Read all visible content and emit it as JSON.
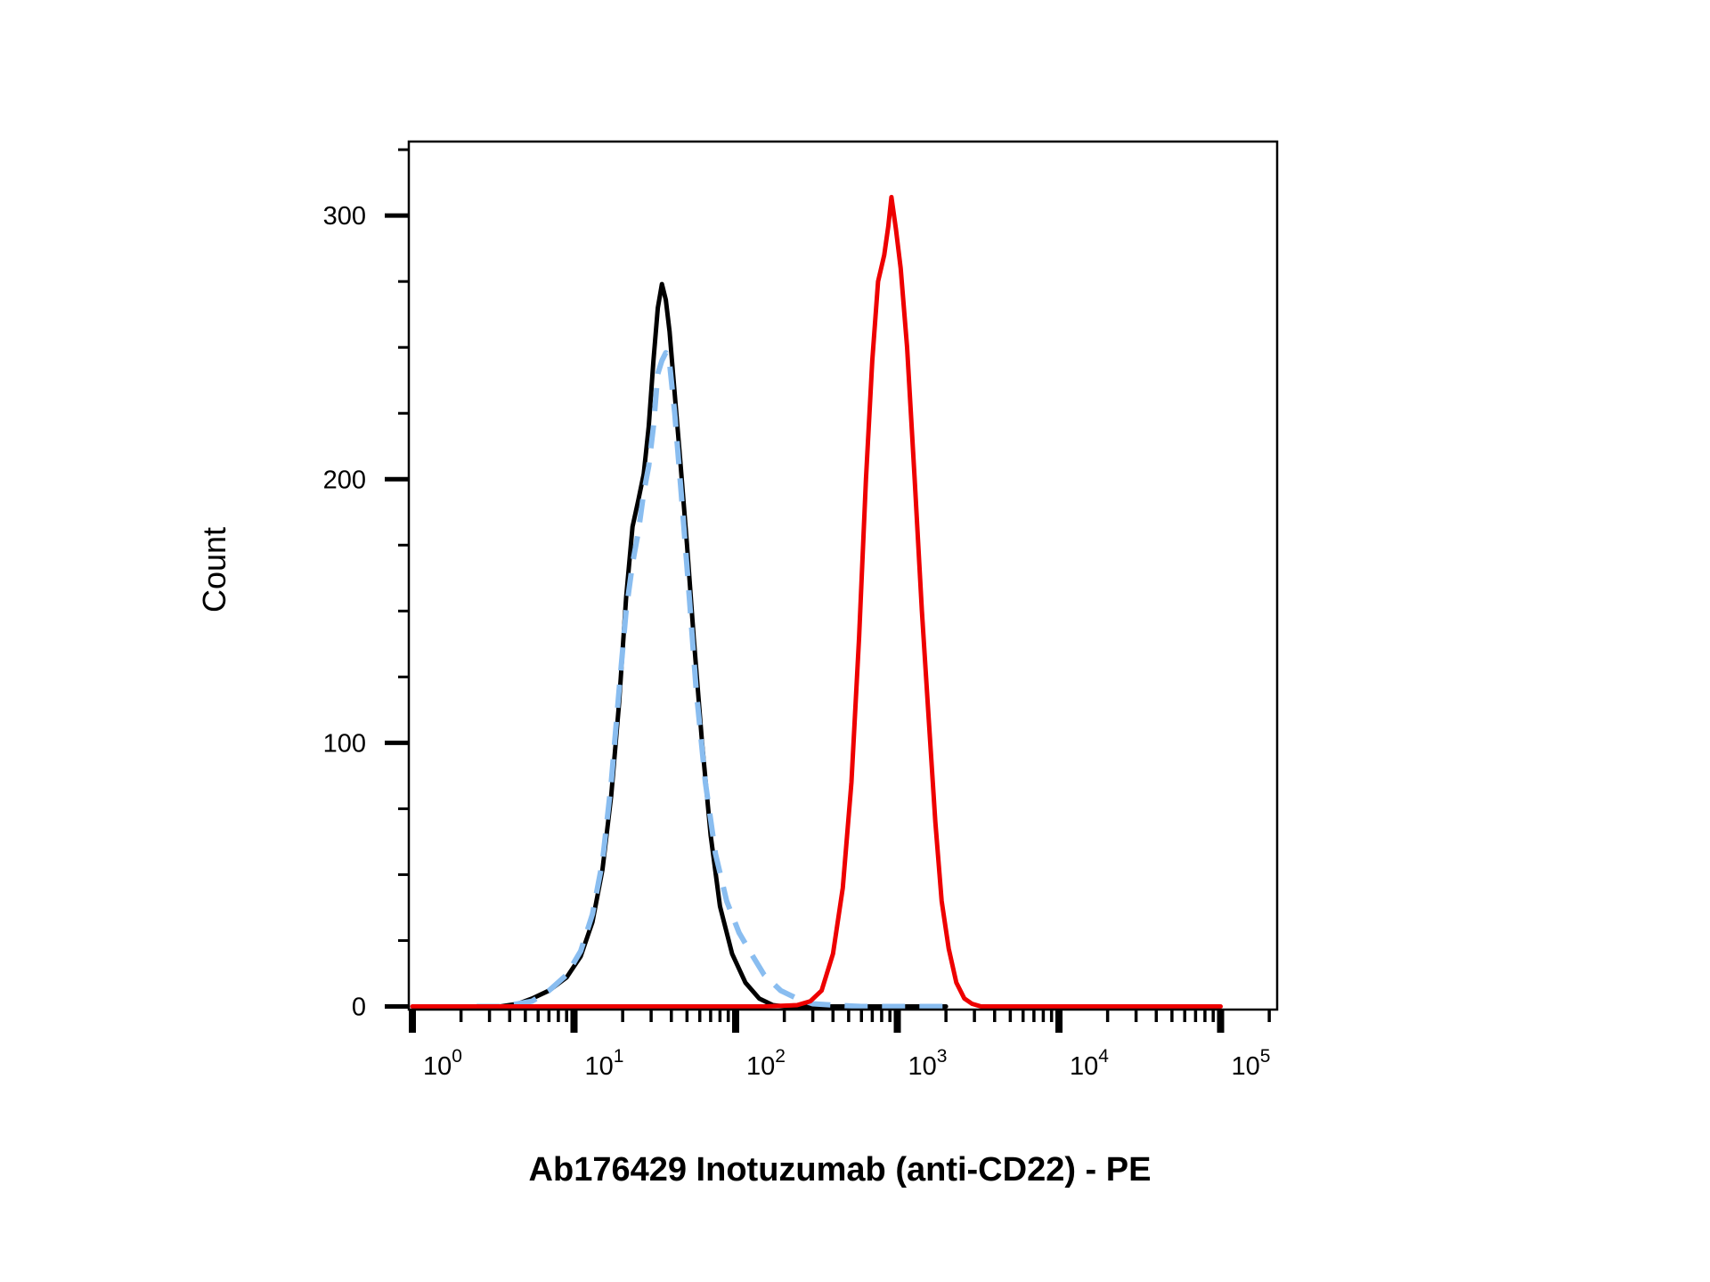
{
  "chart_data": {
    "type": "line",
    "title": "",
    "xlabel": "Ab176429 Inotuzumab (anti-CD22) - PE",
    "ylabel": "Count",
    "x_scale": "log10",
    "xlim": [
      0.7,
      140000
    ],
    "ylim": [
      -5,
      330
    ],
    "x_ticks": [
      {
        "base": "10",
        "exp": "0"
      },
      {
        "base": "10",
        "exp": "1"
      },
      {
        "base": "10",
        "exp": "2"
      },
      {
        "base": "10",
        "exp": "3"
      },
      {
        "base": "10",
        "exp": "4"
      },
      {
        "base": "10",
        "exp": "5"
      }
    ],
    "y_ticks": [
      "0",
      "100",
      "200",
      "300"
    ],
    "grid": false,
    "legend": "none",
    "series": [
      {
        "color": "#000000",
        "style": "solid",
        "points": [
          [
            2.5,
            0
          ],
          [
            3.5,
            0
          ],
          [
            4.5,
            1
          ],
          [
            5.5,
            3
          ],
          [
            7,
            6
          ],
          [
            9,
            11
          ],
          [
            11,
            19
          ],
          [
            13,
            32
          ],
          [
            15,
            52
          ],
          [
            17,
            80
          ],
          [
            19,
            115
          ],
          [
            21,
            155
          ],
          [
            23,
            182
          ],
          [
            25,
            192
          ],
          [
            27,
            202
          ],
          [
            29,
            220
          ],
          [
            31,
            245
          ],
          [
            33,
            265
          ],
          [
            35,
            274
          ],
          [
            37,
            268
          ],
          [
            39,
            256
          ],
          [
            41,
            240
          ],
          [
            45,
            210
          ],
          [
            50,
            175
          ],
          [
            55,
            140
          ],
          [
            62,
            100
          ],
          [
            70,
            65
          ],
          [
            80,
            38
          ],
          [
            95,
            20
          ],
          [
            115,
            9
          ],
          [
            140,
            3
          ],
          [
            170,
            0.5
          ],
          [
            200,
            0
          ],
          [
            300,
            0
          ],
          [
            600,
            0
          ],
          [
            2000,
            0
          ]
        ]
      },
      {
        "color": "#89bdf0",
        "style": "dashed",
        "points": [
          [
            2.5,
            0
          ],
          [
            3.5,
            0
          ],
          [
            4.5,
            1
          ],
          [
            5.5,
            2
          ],
          [
            7,
            6
          ],
          [
            9,
            12
          ],
          [
            11,
            21
          ],
          [
            13,
            35
          ],
          [
            15,
            55
          ],
          [
            17,
            85
          ],
          [
            19,
            120
          ],
          [
            21,
            150
          ],
          [
            23,
            168
          ],
          [
            25,
            180
          ],
          [
            27,
            195
          ],
          [
            29,
            205
          ],
          [
            31,
            220
          ],
          [
            33,
            240
          ],
          [
            35,
            245
          ],
          [
            37,
            248
          ],
          [
            39,
            244
          ],
          [
            42,
            225
          ],
          [
            46,
            195
          ],
          [
            51,
            160
          ],
          [
            57,
            120
          ],
          [
            65,
            85
          ],
          [
            75,
            58
          ],
          [
            88,
            40
          ],
          [
            105,
            28
          ],
          [
            125,
            20
          ],
          [
            150,
            12
          ],
          [
            190,
            6
          ],
          [
            240,
            3
          ],
          [
            300,
            1
          ],
          [
            400,
            0.5
          ],
          [
            600,
            0
          ],
          [
            2000,
            0
          ]
        ]
      },
      {
        "color": "#ee0000",
        "style": "solid",
        "points": [
          [
            1,
            0
          ],
          [
            150,
            0
          ],
          [
            240,
            0.5
          ],
          [
            290,
            2
          ],
          [
            340,
            6
          ],
          [
            400,
            20
          ],
          [
            460,
            45
          ],
          [
            520,
            85
          ],
          [
            580,
            140
          ],
          [
            640,
            200
          ],
          [
            700,
            245
          ],
          [
            760,
            275
          ],
          [
            830,
            285
          ],
          [
            880,
            296
          ],
          [
            920,
            307
          ],
          [
            980,
            295
          ],
          [
            1050,
            280
          ],
          [
            1150,
            250
          ],
          [
            1280,
            200
          ],
          [
            1420,
            150
          ],
          [
            1560,
            110
          ],
          [
            1720,
            70
          ],
          [
            1880,
            40
          ],
          [
            2080,
            22
          ],
          [
            2320,
            9
          ],
          [
            2600,
            3
          ],
          [
            2900,
            1
          ],
          [
            3300,
            0
          ],
          [
            10000,
            0
          ],
          [
            100000,
            0
          ]
        ]
      }
    ]
  }
}
